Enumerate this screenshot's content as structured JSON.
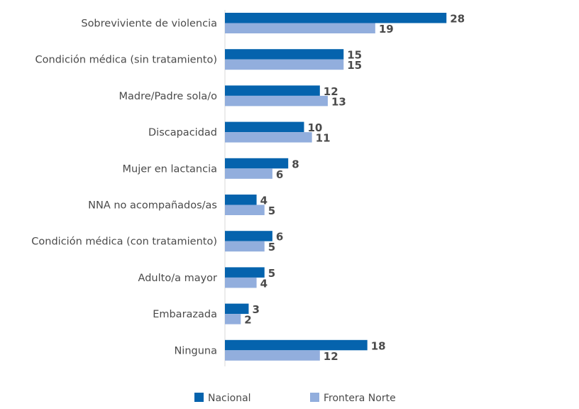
{
  "chart_data": {
    "type": "bar",
    "orientation": "horizontal",
    "categories": [
      "Sobreviviente de violencia",
      "Condición médica (sin tratamiento)",
      "Madre/Padre sola/o",
      "Discapacidad",
      "Mujer en lactancia",
      "NNA no acompañados/as",
      "Condición médica (con tratamiento)",
      "Adulto/a mayor",
      "Embarazada",
      "Ninguna"
    ],
    "series": [
      {
        "name": "Nacional",
        "color": "#0563ad",
        "values": [
          28,
          15,
          12,
          10,
          8,
          4,
          6,
          5,
          3,
          18
        ]
      },
      {
        "name": "Frontera Norte",
        "color": "#92aedd",
        "values": [
          19,
          15,
          13,
          11,
          6,
          5,
          5,
          4,
          2,
          12
        ]
      }
    ],
    "xlim": [
      0,
      30
    ],
    "grid": false,
    "legend_position": "bottom"
  }
}
